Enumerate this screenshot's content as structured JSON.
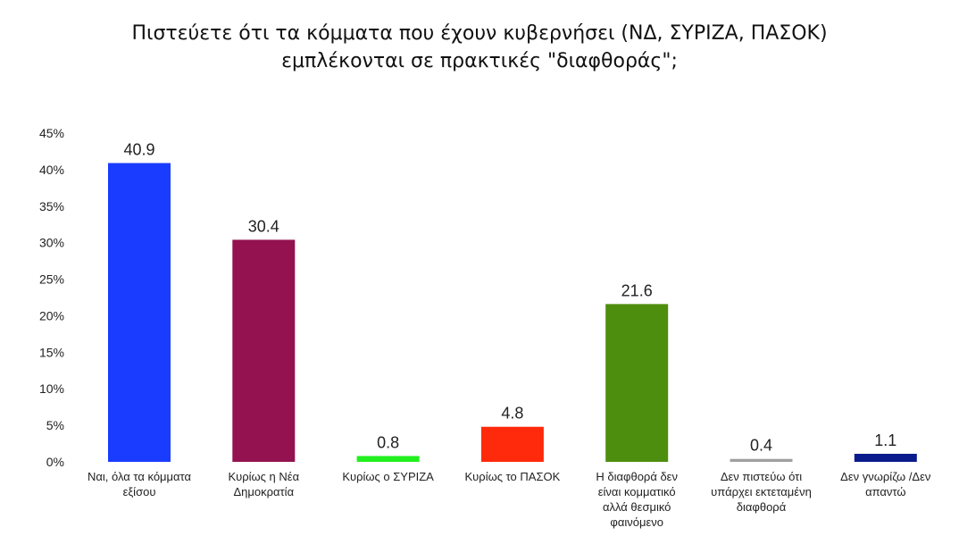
{
  "chart_data": {
    "type": "bar",
    "title_lines": [
      "Πιστεύετε ότι τα κόμματα που έχουν κυβερνήσει (ΝΔ, ΣΥΡΙΖΑ, ΠΑΣΟΚ)",
      "εμπλέκονται σε πρακτικές \"διαφθοράς\";"
    ],
    "xlabel": "",
    "ylabel": "",
    "ylim": [
      0,
      45
    ],
    "yticks": [
      0,
      5,
      10,
      15,
      20,
      25,
      30,
      35,
      40,
      45
    ],
    "ytick_labels": [
      "0%",
      "5%",
      "10%",
      "15%",
      "20%",
      "25%",
      "30%",
      "35%",
      "40%",
      "45%"
    ],
    "grid": false,
    "legend": "none",
    "categories": [
      [
        "Ναι, όλα τα κόμματα",
        "εξίσου"
      ],
      [
        "Κυρίως η Νέα",
        "Δημοκρατία"
      ],
      [
        "Κυρίως ο ΣΥΡΙΖΑ"
      ],
      [
        "Κυρίως το ΠΑΣΟΚ"
      ],
      [
        "Η διαφθορά δεν",
        "είναι κομματικό",
        "αλλά  θεσμικό",
        "φαινόμενο"
      ],
      [
        "Δεν πιστεύω ότι",
        "υπάρχει  εκτεταμένη",
        "διαφθορά"
      ],
      [
        "Δεν γνωρίζω  /Δεν",
        "απαντώ"
      ]
    ],
    "values": [
      40.9,
      30.4,
      0.8,
      4.8,
      21.6,
      0.4,
      1.1
    ],
    "value_labels": [
      "40.9",
      "30.4",
      "0.8",
      "4.8",
      "21.6",
      "0.4",
      "1.1"
    ],
    "colors": [
      "#1a3cff",
      "#93124f",
      "#22f01f",
      "#ff2a0c",
      "#4e8e0e",
      "#a0a0a0",
      "#0a1b8c"
    ]
  }
}
